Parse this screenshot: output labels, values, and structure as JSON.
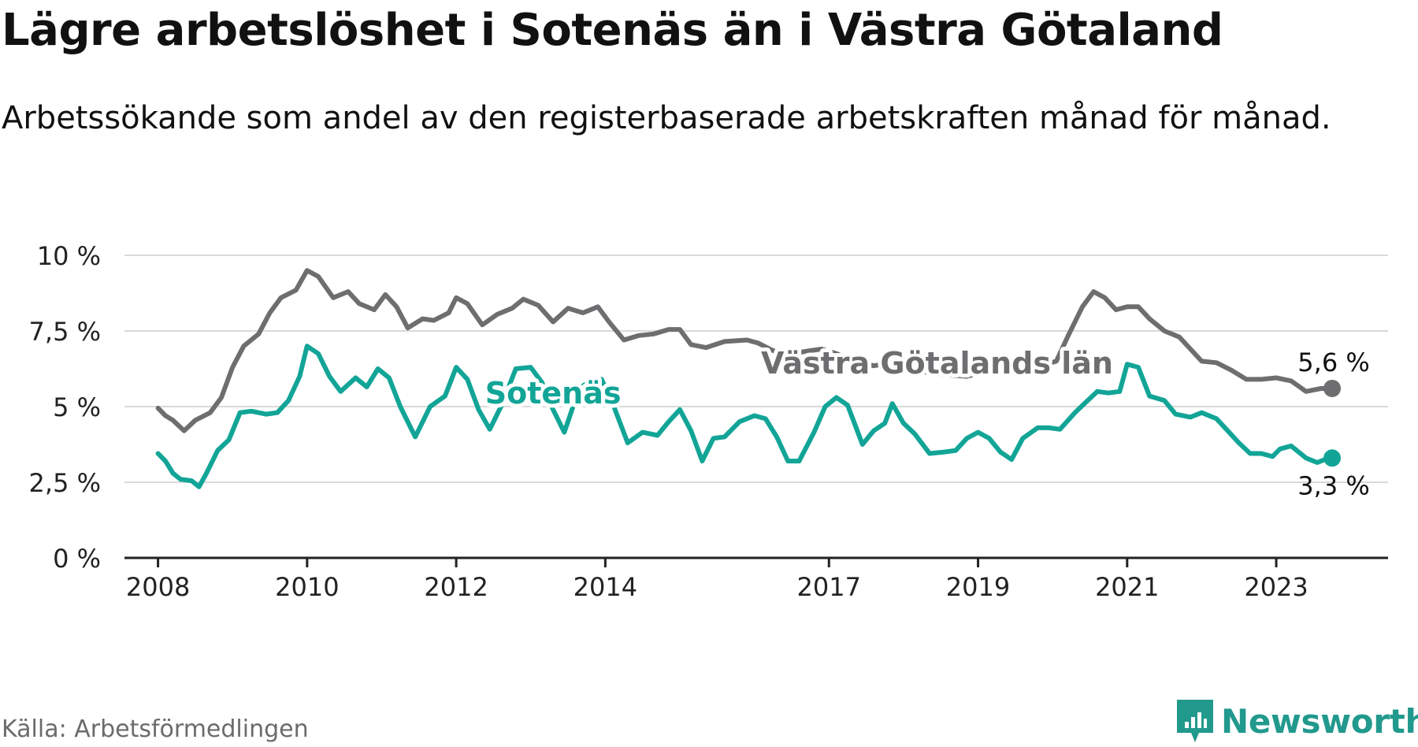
{
  "title": "Lägre arbetslöshet i Sotenäs än i Västra Götaland",
  "subtitle": "Arbetssökande som andel av den registerbaserade arbetskraften månad för månad.",
  "source": "Källa: Arbetsförmedlingen",
  "brand": {
    "name": "Newsworthy",
    "icon": "newsworthy-logo-icon",
    "color": "#22998d"
  },
  "colors": {
    "sotenas": "#12a597",
    "vastra": "#6e6d70",
    "grid": "#d9d9d9",
    "axis": "#222222"
  },
  "chart_data": {
    "type": "line",
    "title": "Lägre arbetslöshet i Sotenäs än i Västra Götaland",
    "xlabel": "",
    "ylabel": "",
    "ylim": [
      0,
      10
    ],
    "xlim": [
      2007.55,
      2024.5
    ],
    "yticks": [
      {
        "value": 0,
        "label": "0 %"
      },
      {
        "value": 2.5,
        "label": "2,5 %"
      },
      {
        "value": 5,
        "label": "5 %"
      },
      {
        "value": 7.5,
        "label": "7,5 %"
      },
      {
        "value": 10,
        "label": "10 %"
      }
    ],
    "xticks": [
      {
        "value": 2008,
        "label": "2008"
      },
      {
        "value": 2010,
        "label": "2010"
      },
      {
        "value": 2012,
        "label": "2012"
      },
      {
        "value": 2014,
        "label": "2014"
      },
      {
        "value": 2017,
        "label": "2017"
      },
      {
        "value": 2019,
        "label": "2019"
      },
      {
        "value": 2021,
        "label": "2021"
      },
      {
        "value": 2023,
        "label": "2023"
      }
    ],
    "grid": true,
    "series": [
      {
        "name": "Västra Götalands län",
        "color": "#6e6d70",
        "end_label": "5,6 %",
        "points": [
          [
            2008.0,
            4.95
          ],
          [
            2008.1,
            4.7
          ],
          [
            2008.2,
            4.55
          ],
          [
            2008.35,
            4.2
          ],
          [
            2008.5,
            4.55
          ],
          [
            2008.7,
            4.8
          ],
          [
            2008.85,
            5.3
          ],
          [
            2009.0,
            6.3
          ],
          [
            2009.15,
            7.0
          ],
          [
            2009.35,
            7.4
          ],
          [
            2009.5,
            8.1
          ],
          [
            2009.65,
            8.6
          ],
          [
            2009.85,
            8.85
          ],
          [
            2010.0,
            9.5
          ],
          [
            2010.15,
            9.3
          ],
          [
            2010.35,
            8.6
          ],
          [
            2010.55,
            8.8
          ],
          [
            2010.7,
            8.4
          ],
          [
            2010.9,
            8.2
          ],
          [
            2011.05,
            8.7
          ],
          [
            2011.2,
            8.3
          ],
          [
            2011.35,
            7.6
          ],
          [
            2011.55,
            7.9
          ],
          [
            2011.7,
            7.85
          ],
          [
            2011.9,
            8.1
          ],
          [
            2012.0,
            8.6
          ],
          [
            2012.15,
            8.4
          ],
          [
            2012.35,
            7.7
          ],
          [
            2012.55,
            8.05
          ],
          [
            2012.75,
            8.25
          ],
          [
            2012.9,
            8.55
          ],
          [
            2013.1,
            8.35
          ],
          [
            2013.3,
            7.8
          ],
          [
            2013.5,
            8.25
          ],
          [
            2013.7,
            8.1
          ],
          [
            2013.9,
            8.3
          ],
          [
            2014.05,
            7.8
          ],
          [
            2014.25,
            7.2
          ],
          [
            2014.45,
            7.35
          ],
          [
            2014.65,
            7.4
          ],
          [
            2014.85,
            7.55
          ],
          [
            2015.0,
            7.55
          ],
          [
            2015.15,
            7.05
          ],
          [
            2015.35,
            6.95
          ],
          [
            2015.6,
            7.15
          ],
          [
            2015.9,
            7.2
          ],
          [
            2016.05,
            7.1
          ],
          [
            2016.25,
            6.85
          ],
          [
            2016.5,
            6.75
          ],
          [
            2016.75,
            6.85
          ],
          [
            2016.9,
            6.9
          ],
          [
            2017.1,
            6.75
          ],
          [
            2017.35,
            6.5
          ],
          [
            2017.6,
            6.35
          ],
          [
            2017.85,
            6.45
          ],
          [
            2018.1,
            6.3
          ],
          [
            2018.35,
            6.1
          ],
          [
            2018.6,
            6.05
          ],
          [
            2018.85,
            6.0
          ],
          [
            2019.1,
            6.15
          ],
          [
            2019.35,
            6.1
          ],
          [
            2019.6,
            6.2
          ],
          [
            2019.85,
            6.35
          ],
          [
            2020.05,
            6.5
          ],
          [
            2020.2,
            7.3
          ],
          [
            2020.4,
            8.3
          ],
          [
            2020.55,
            8.8
          ],
          [
            2020.7,
            8.6
          ],
          [
            2020.85,
            8.2
          ],
          [
            2021.0,
            8.3
          ],
          [
            2021.15,
            8.3
          ],
          [
            2021.3,
            7.9
          ],
          [
            2021.5,
            7.5
          ],
          [
            2021.7,
            7.3
          ],
          [
            2021.85,
            6.9
          ],
          [
            2022.0,
            6.5
          ],
          [
            2022.2,
            6.45
          ],
          [
            2022.4,
            6.2
          ],
          [
            2022.6,
            5.9
          ],
          [
            2022.8,
            5.9
          ],
          [
            2023.0,
            5.95
          ],
          [
            2023.2,
            5.85
          ],
          [
            2023.4,
            5.5
          ],
          [
            2023.6,
            5.6
          ],
          [
            2023.75,
            5.6
          ]
        ]
      },
      {
        "name": "Sotenäs",
        "color": "#12a597",
        "end_label": "3,3 %",
        "points": [
          [
            2008.0,
            3.45
          ],
          [
            2008.1,
            3.2
          ],
          [
            2008.2,
            2.8
          ],
          [
            2008.3,
            2.6
          ],
          [
            2008.45,
            2.55
          ],
          [
            2008.55,
            2.35
          ],
          [
            2008.65,
            2.8
          ],
          [
            2008.8,
            3.55
          ],
          [
            2008.95,
            3.9
          ],
          [
            2009.1,
            4.8
          ],
          [
            2009.25,
            4.85
          ],
          [
            2009.45,
            4.75
          ],
          [
            2009.6,
            4.8
          ],
          [
            2009.75,
            5.2
          ],
          [
            2009.9,
            6.0
          ],
          [
            2010.0,
            7.0
          ],
          [
            2010.15,
            6.75
          ],
          [
            2010.3,
            6.0
          ],
          [
            2010.45,
            5.5
          ],
          [
            2010.65,
            5.95
          ],
          [
            2010.8,
            5.65
          ],
          [
            2010.95,
            6.25
          ],
          [
            2011.1,
            5.95
          ],
          [
            2011.25,
            5.0
          ],
          [
            2011.45,
            4.0
          ],
          [
            2011.65,
            5.0
          ],
          [
            2011.85,
            5.35
          ],
          [
            2012.0,
            6.3
          ],
          [
            2012.15,
            5.9
          ],
          [
            2012.3,
            4.9
          ],
          [
            2012.45,
            4.25
          ],
          [
            2012.6,
            5.0
          ],
          [
            2012.8,
            6.25
          ],
          [
            2013.0,
            6.3
          ],
          [
            2013.15,
            5.8
          ],
          [
            2013.3,
            4.9
          ],
          [
            2013.45,
            4.15
          ],
          [
            2013.65,
            5.6
          ],
          [
            2013.8,
            5.85
          ],
          [
            2013.95,
            5.9
          ],
          [
            2014.1,
            5.1
          ],
          [
            2014.3,
            3.8
          ],
          [
            2014.5,
            4.15
          ],
          [
            2014.7,
            4.05
          ],
          [
            2014.85,
            4.5
          ],
          [
            2015.0,
            4.9
          ],
          [
            2015.15,
            4.2
          ],
          [
            2015.3,
            3.2
          ],
          [
            2015.45,
            3.95
          ],
          [
            2015.6,
            4.0
          ],
          [
            2015.8,
            4.5
          ],
          [
            2016.0,
            4.7
          ],
          [
            2016.15,
            4.6
          ],
          [
            2016.3,
            4.0
          ],
          [
            2016.45,
            3.2
          ],
          [
            2016.6,
            3.2
          ],
          [
            2016.8,
            4.15
          ],
          [
            2016.95,
            5.0
          ],
          [
            2017.1,
            5.3
          ],
          [
            2017.25,
            5.05
          ],
          [
            2017.45,
            3.75
          ],
          [
            2017.6,
            4.2
          ],
          [
            2017.75,
            4.45
          ],
          [
            2017.85,
            5.1
          ],
          [
            2018.0,
            4.45
          ],
          [
            2018.15,
            4.1
          ],
          [
            2018.35,
            3.45
          ],
          [
            2018.55,
            3.5
          ],
          [
            2018.7,
            3.55
          ],
          [
            2018.85,
            3.95
          ],
          [
            2019.0,
            4.15
          ],
          [
            2019.15,
            3.95
          ],
          [
            2019.3,
            3.5
          ],
          [
            2019.45,
            3.25
          ],
          [
            2019.6,
            3.95
          ],
          [
            2019.8,
            4.3
          ],
          [
            2019.95,
            4.3
          ],
          [
            2020.1,
            4.25
          ],
          [
            2020.3,
            4.8
          ],
          [
            2020.45,
            5.15
          ],
          [
            2020.6,
            5.5
          ],
          [
            2020.75,
            5.45
          ],
          [
            2020.9,
            5.5
          ],
          [
            2021.0,
            6.4
          ],
          [
            2021.15,
            6.3
          ],
          [
            2021.3,
            5.35
          ],
          [
            2021.5,
            5.2
          ],
          [
            2021.65,
            4.75
          ],
          [
            2021.85,
            4.65
          ],
          [
            2022.0,
            4.8
          ],
          [
            2022.2,
            4.6
          ],
          [
            2022.35,
            4.2
          ],
          [
            2022.5,
            3.8
          ],
          [
            2022.65,
            3.45
          ],
          [
            2022.8,
            3.45
          ],
          [
            2022.95,
            3.35
          ],
          [
            2023.05,
            3.6
          ],
          [
            2023.2,
            3.7
          ],
          [
            2023.4,
            3.3
          ],
          [
            2023.55,
            3.15
          ],
          [
            2023.7,
            3.3
          ],
          [
            2023.75,
            3.3
          ]
        ]
      }
    ],
    "annotations": [
      {
        "series": "Sotenäs",
        "text": "Sotenäs",
        "x": 2013.3,
        "y": 5.1
      },
      {
        "series": "Västra Götalands län",
        "text": "Västra Götalands län",
        "x": 2018.45,
        "y": 6.1
      }
    ]
  }
}
